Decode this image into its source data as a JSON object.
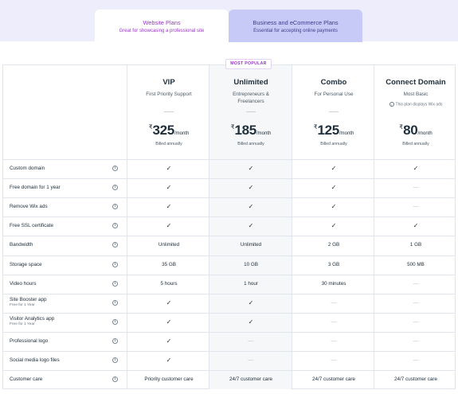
{
  "tabs": [
    {
      "title": "Website Plans",
      "subtitle": "Great for showcasing a professional site"
    },
    {
      "title": "Business and eCommerce Plans",
      "subtitle": "Essential for accepting online payments"
    }
  ],
  "badge": "MOST POPULAR",
  "currency_symbol": "₹",
  "plans": [
    {
      "name": "VIP",
      "desc": "First Priority Support",
      "note": "",
      "dash": "—",
      "price": "325",
      "per": "/month",
      "billed": "Billed annually"
    },
    {
      "name": "Unlimited",
      "desc": "Entrepreneurs & Freelancers",
      "note": "",
      "dash": "—",
      "price": "185",
      "per": "/month",
      "billed": "Billed annually"
    },
    {
      "name": "Combo",
      "desc": "For Personal Use",
      "note": "",
      "dash": "—",
      "price": "125",
      "per": "/month",
      "billed": "Billed annually"
    },
    {
      "name": "Connect Domain",
      "desc": "Most Basic",
      "note": "This plan displays Wix ads",
      "dash": "",
      "price": "80",
      "per": "/month",
      "billed": "Billed annually"
    }
  ],
  "features": [
    {
      "label": "Custom domain",
      "sub": "",
      "values": [
        "✓",
        "✓",
        "✓",
        "✓"
      ]
    },
    {
      "label": "Free domain for 1 year",
      "sub": "",
      "values": [
        "✓",
        "✓",
        "✓",
        "—"
      ]
    },
    {
      "label": "Remove Wix ads",
      "sub": "",
      "values": [
        "✓",
        "✓",
        "✓",
        "—"
      ]
    },
    {
      "label": "Free SSL certificate",
      "sub": "",
      "values": [
        "✓",
        "✓",
        "✓",
        "✓"
      ]
    },
    {
      "label": "Bandwidth",
      "sub": "",
      "values": [
        "Unlimited",
        "Unlimited",
        "2 GB",
        "1 GB"
      ]
    },
    {
      "label": "Storage space",
      "sub": "",
      "values": [
        "35 GB",
        "10 GB",
        "3 GB",
        "500 MB"
      ]
    },
    {
      "label": "Video hours",
      "sub": "",
      "values": [
        "5 hours",
        "1 hour",
        "30 minutes",
        "—"
      ]
    },
    {
      "label": "Site Booster app",
      "sub": "Free for 1 Year",
      "values": [
        "✓",
        "✓",
        "—",
        "—"
      ]
    },
    {
      "label": "Visitor Analytics app",
      "sub": "Free for 1 Year",
      "values": [
        "✓",
        "✓",
        "—",
        "—"
      ]
    },
    {
      "label": "Professional logo",
      "sub": "",
      "values": [
        "✓",
        "—",
        "—",
        "—"
      ]
    },
    {
      "label": "Social media logo files",
      "sub": "",
      "values": [
        "✓",
        "—",
        "—",
        "—"
      ]
    },
    {
      "label": "Customer care",
      "sub": "",
      "values": [
        "Priority customer care",
        "24/7 customer care",
        "24/7 customer care",
        "24/7 customer care"
      ]
    }
  ],
  "icons": {
    "info": "info-icon",
    "check": "check-icon",
    "dash": "dash-icon"
  },
  "colors": {
    "accent": "#9a33c8",
    "tab_band": "#ededfb",
    "inactive_tab": "#c7c9f7",
    "border": "#dfe5eb"
  }
}
